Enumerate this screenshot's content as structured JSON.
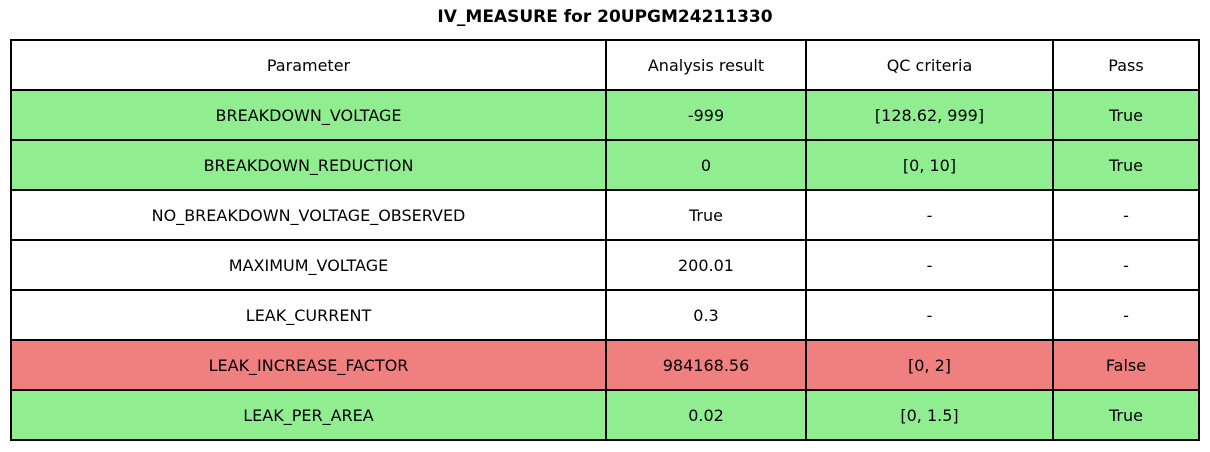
{
  "title": "IV_MEASURE for 20UPGM24211330",
  "chart_data": {
    "type": "table",
    "title": "IV_MEASURE for 20UPGM24211330",
    "columns": [
      "Parameter",
      "Analysis result",
      "QC criteria",
      "Pass"
    ],
    "rows": [
      {
        "cells": [
          "BREAKDOWN_VOLTAGE",
          "-999",
          "[128.62, 999]",
          "True"
        ],
        "status": "pass"
      },
      {
        "cells": [
          "BREAKDOWN_REDUCTION",
          "0",
          "[0, 10]",
          "True"
        ],
        "status": "pass"
      },
      {
        "cells": [
          "NO_BREAKDOWN_VOLTAGE_OBSERVED",
          "True",
          "-",
          "-"
        ],
        "status": "neutral"
      },
      {
        "cells": [
          "MAXIMUM_VOLTAGE",
          "200.01",
          "-",
          "-"
        ],
        "status": "neutral"
      },
      {
        "cells": [
          "LEAK_CURRENT",
          "0.3",
          "-",
          "-"
        ],
        "status": "neutral"
      },
      {
        "cells": [
          "LEAK_INCREASE_FACTOR",
          "984168.56",
          "[0, 2]",
          "False"
        ],
        "status": "fail"
      },
      {
        "cells": [
          "LEAK_PER_AREA",
          "0.02",
          "[0, 1.5]",
          "True"
        ],
        "status": "pass"
      }
    ]
  },
  "colors": {
    "pass_row": "#90EE90",
    "fail_row": "#F08080",
    "neutral_row": "#FFFFFF",
    "border": "#000000",
    "text": "#000000",
    "background": "#FFFFFF"
  }
}
